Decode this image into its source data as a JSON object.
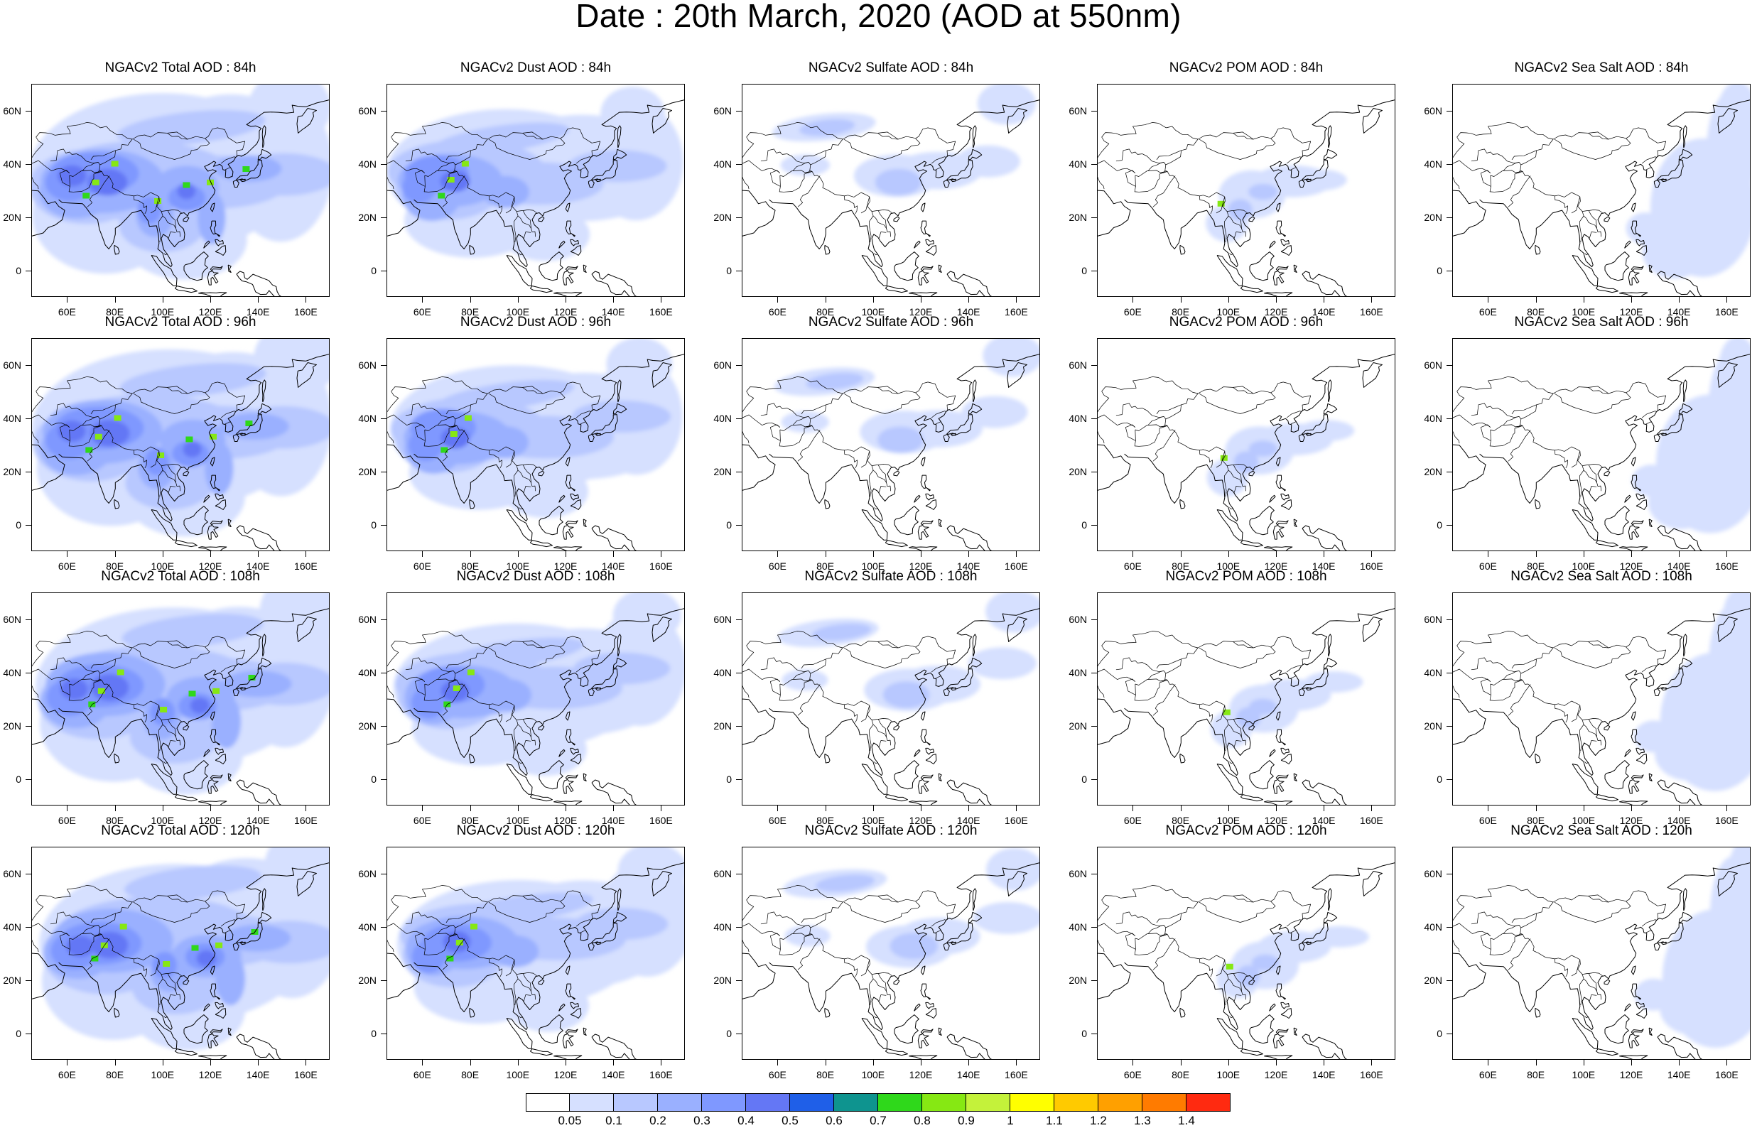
{
  "title": "Date : 20th March, 2020 (AOD at 550nm)",
  "panels": [
    {
      "title": "NGACv2 Total AOD : 84h",
      "species": "total",
      "hour": 84
    },
    {
      "title": "NGACv2 Dust AOD : 84h",
      "species": "dust",
      "hour": 84
    },
    {
      "title": "NGACv2 Sulfate AOD : 84h",
      "species": "sulfate",
      "hour": 84
    },
    {
      "title": "NGACv2 POM AOD : 84h",
      "species": "pom",
      "hour": 84
    },
    {
      "title": "NGACv2 Sea Salt AOD : 84h",
      "species": "seasalt",
      "hour": 84
    },
    {
      "title": "NGACv2 Total AOD : 96h",
      "species": "total",
      "hour": 96
    },
    {
      "title": "NGACv2 Dust AOD : 96h",
      "species": "dust",
      "hour": 96
    },
    {
      "title": "NGACv2 Sulfate AOD : 96h",
      "species": "sulfate",
      "hour": 96
    },
    {
      "title": "NGACv2 POM AOD : 96h",
      "species": "pom",
      "hour": 96
    },
    {
      "title": "NGACv2 Sea Salt AOD : 96h",
      "species": "seasalt",
      "hour": 96
    },
    {
      "title": "NGACv2 Total AOD : 108h",
      "species": "total",
      "hour": 108
    },
    {
      "title": "NGACv2 Dust AOD : 108h",
      "species": "dust",
      "hour": 108
    },
    {
      "title": "NGACv2 Sulfate AOD : 108h",
      "species": "sulfate",
      "hour": 108
    },
    {
      "title": "NGACv2 POM AOD : 108h",
      "species": "pom",
      "hour": 108
    },
    {
      "title": "NGACv2 Sea Salt AOD : 108h",
      "species": "seasalt",
      "hour": 108
    },
    {
      "title": "NGACv2 Total AOD : 120h",
      "species": "total",
      "hour": 120
    },
    {
      "title": "NGACv2 Dust AOD : 120h",
      "species": "dust",
      "hour": 120
    },
    {
      "title": "NGACv2 Sulfate AOD : 120h",
      "species": "sulfate",
      "hour": 120
    },
    {
      "title": "NGACv2 POM AOD : 120h",
      "species": "pom",
      "hour": 120
    },
    {
      "title": "NGACv2 Sea Salt  AOD : 120h",
      "species": "seasalt",
      "hour": 120
    }
  ],
  "map": {
    "lon_range": [
      45,
      170
    ],
    "lat_range": [
      -10,
      70
    ],
    "lon_ticks": [
      60,
      80,
      100,
      120,
      140,
      160
    ],
    "lon_labels": [
      "60E",
      "80E",
      "100E",
      "120E",
      "140E",
      "160E"
    ],
    "lat_ticks": [
      60,
      40,
      20,
      0
    ],
    "lat_labels": [
      "60N",
      "40N",
      "20N",
      "0"
    ]
  },
  "colorbar": {
    "colors": [
      "#ffffff",
      "#d6e0ff",
      "#b8c8ff",
      "#9ab0ff",
      "#7f98ff",
      "#6477f5",
      "#1f5fe8",
      "#0e948f",
      "#2fd81b",
      "#86e813",
      "#c4f23a",
      "#ffff00",
      "#ffca00",
      "#ffa000",
      "#ff7b00",
      "#ff2a10"
    ],
    "labels": [
      "0.05",
      "0.1",
      "0.2",
      "0.3",
      "0.4",
      "0.5",
      "0.6",
      "0.7",
      "0.8",
      "0.9",
      "1",
      "1.1",
      "1.2",
      "1.3",
      "1.4"
    ]
  }
}
